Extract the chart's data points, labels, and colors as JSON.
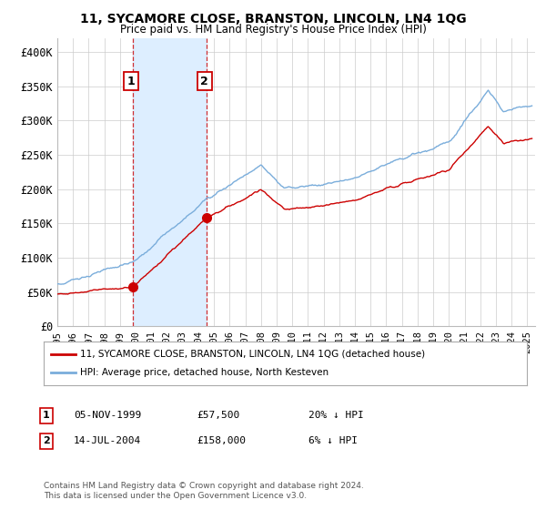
{
  "title": "11, SYCAMORE CLOSE, BRANSTON, LINCOLN, LN4 1QG",
  "subtitle": "Price paid vs. HM Land Registry's House Price Index (HPI)",
  "legend_label_red": "11, SYCAMORE CLOSE, BRANSTON, LINCOLN, LN4 1QG (detached house)",
  "legend_label_blue": "HPI: Average price, detached house, North Kesteven",
  "annotation1_date": "05-NOV-1999",
  "annotation1_price": "£57,500",
  "annotation1_hpi": "20% ↓ HPI",
  "annotation2_date": "14-JUL-2004",
  "annotation2_price": "£158,000",
  "annotation2_hpi": "6% ↓ HPI",
  "footer": "Contains HM Land Registry data © Crown copyright and database right 2024.\nThis data is licensed under the Open Government Licence v3.0.",
  "sale1_year": 1999.85,
  "sale1_price": 57500,
  "sale2_year": 2004.54,
  "sale2_price": 158000,
  "red_color": "#cc0000",
  "blue_color": "#7aaddb",
  "shade_color": "#ddeeff",
  "vline_color": "#cc0000",
  "grid_color": "#cccccc",
  "background_color": "#ffffff",
  "ylim": [
    0,
    420000
  ],
  "xlim_start": 1995.0,
  "xlim_end": 2025.5
}
